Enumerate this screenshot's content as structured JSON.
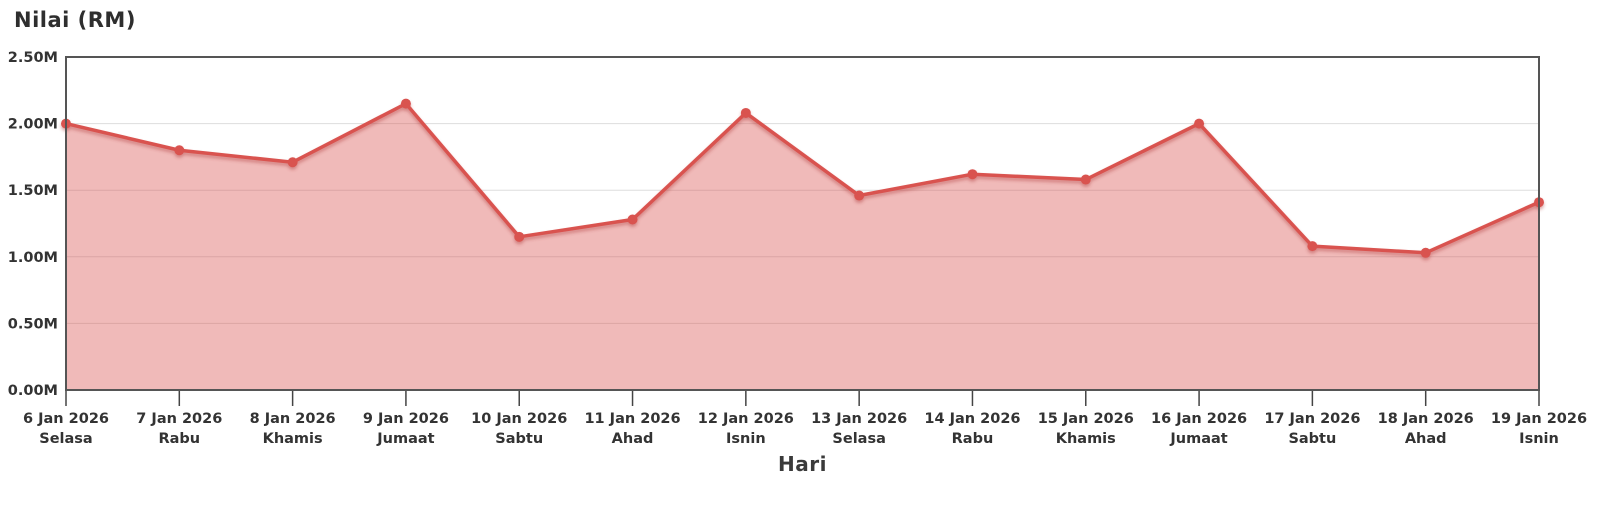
{
  "chart_data": {
    "type": "area",
    "title": "Nilai (RM)",
    "xlabel": "Hari",
    "categories": [
      {
        "date": "6 Jan 2026",
        "day": "Selasa"
      },
      {
        "date": "7 Jan 2026",
        "day": "Rabu"
      },
      {
        "date": "8 Jan 2026",
        "day": "Khamis"
      },
      {
        "date": "9 Jan 2026",
        "day": "Jumaat"
      },
      {
        "date": "10 Jan 2026",
        "day": "Sabtu"
      },
      {
        "date": "11 Jan 2026",
        "day": "Ahad"
      },
      {
        "date": "12 Jan 2026",
        "day": "Isnin"
      },
      {
        "date": "13 Jan 2026",
        "day": "Selasa"
      },
      {
        "date": "14 Jan 2026",
        "day": "Rabu"
      },
      {
        "date": "15 Jan 2026",
        "day": "Khamis"
      },
      {
        "date": "16 Jan 2026",
        "day": "Jumaat"
      },
      {
        "date": "17 Jan 2026",
        "day": "Sabtu"
      },
      {
        "date": "18 Jan 2026",
        "day": "Ahad"
      },
      {
        "date": "19 Jan 2026",
        "day": "Isnin"
      }
    ],
    "values_rm_millions": [
      2.0,
      1.8,
      1.71,
      2.15,
      1.15,
      1.28,
      2.08,
      1.46,
      1.62,
      1.58,
      2.0,
      1.08,
      1.03,
      1.41
    ],
    "ylim_rm_millions": [
      0,
      2.5
    ],
    "yticks": [
      {
        "value": 0.0,
        "label": "0.00M"
      },
      {
        "value": 0.5,
        "label": "0.50M"
      },
      {
        "value": 1.0,
        "label": "1.00M"
      },
      {
        "value": 1.5,
        "label": "1.50M"
      },
      {
        "value": 2.0,
        "label": "2.00M"
      },
      {
        "value": 2.5,
        "label": "2.50M"
      }
    ],
    "grid": "horizontal-only",
    "legend": "none",
    "colors": {
      "line": "#d9534f",
      "fill": "rgba(217,83,79,0.40)",
      "marker": "#d9534f",
      "plot_border": "#555555",
      "gridline": "#dddddd",
      "tick": "#444444",
      "text": "#333333"
    }
  }
}
